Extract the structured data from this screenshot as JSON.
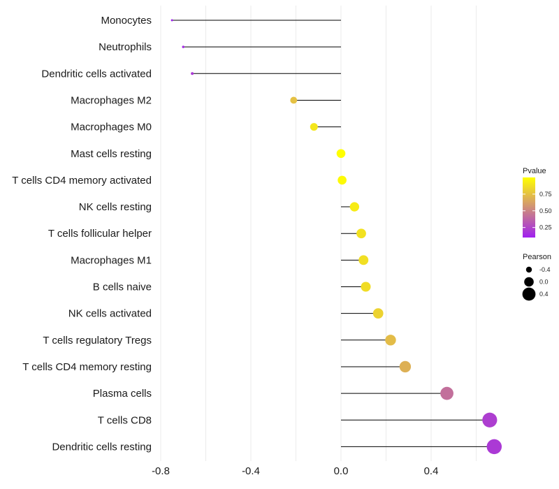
{
  "chart_data": {
    "type": "lollipop",
    "categories": [
      "Monocytes",
      "Neutrophils",
      "Dendritic cells activated",
      "Macrophages M2",
      "Macrophages M0",
      "Mast cells resting",
      "T cells CD4 memory activated",
      "NK cells resting",
      "T cells follicular helper",
      "Macrophages M1",
      "B cells naive",
      "NK cells activated",
      "T cells regulatory  Tregs ",
      "T cells CD4 memory resting",
      "Plasma cells",
      "T cells CD8",
      "Dendritic cells resting"
    ],
    "pearson": [
      -0.75,
      -0.7,
      -0.66,
      -0.21,
      -0.12,
      0.0,
      0.005,
      0.06,
      0.09,
      0.1,
      0.11,
      0.165,
      0.22,
      0.285,
      0.47,
      0.66,
      0.68
    ],
    "pvalue": [
      0.1,
      0.15,
      0.2,
      0.75,
      0.9,
      1.0,
      0.98,
      0.92,
      0.88,
      0.87,
      0.86,
      0.82,
      0.73,
      0.68,
      0.42,
      0.22,
      0.2
    ],
    "xlim": [
      -0.8,
      0.7
    ],
    "x_ticks": [
      -0.8,
      -0.4,
      0.0,
      0.4
    ],
    "x_tick_labels": [
      "-0.8",
      "-0.4",
      "0.0",
      "0.4"
    ],
    "grid": true,
    "legend_color": {
      "title": "Pvalue",
      "ticks": [
        0.75,
        0.5,
        0.25
      ],
      "tick_labels": [
        "0.75",
        "0.50",
        "0.25"
      ],
      "range": [
        0.1,
        1.0
      ],
      "low_color": "#a020f0",
      "high_color": "#ffff00"
    },
    "legend_size": {
      "title": "Pearson",
      "values": [
        -0.4,
        0.0,
        0.4
      ],
      "labels": [
        "-0.4",
        "0.0",
        "0.4"
      ]
    },
    "legend_placement": "right",
    "colors": {
      "segment": "#000000",
      "grid": "#ebebeb"
    }
  }
}
